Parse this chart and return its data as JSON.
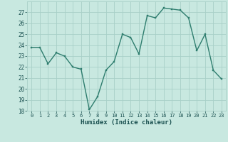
{
  "x": [
    0,
    1,
    2,
    3,
    4,
    5,
    6,
    7,
    8,
    9,
    10,
    11,
    12,
    13,
    14,
    15,
    16,
    17,
    18,
    19,
    20,
    21,
    22,
    23
  ],
  "y": [
    23.8,
    23.8,
    22.3,
    23.3,
    23.0,
    22.0,
    21.8,
    18.1,
    19.3,
    21.7,
    22.5,
    25.0,
    24.7,
    23.2,
    26.7,
    26.5,
    27.4,
    27.3,
    27.2,
    26.5,
    23.5,
    25.0,
    21.7,
    20.9
  ],
  "xlabel": "Humidex (Indice chaleur)",
  "ylim": [
    18,
    28
  ],
  "yticks": [
    18,
    19,
    20,
    21,
    22,
    23,
    24,
    25,
    26,
    27
  ],
  "xticks": [
    0,
    1,
    2,
    3,
    4,
    5,
    6,
    7,
    8,
    9,
    10,
    11,
    12,
    13,
    14,
    15,
    16,
    17,
    18,
    19,
    20,
    21,
    22,
    23
  ],
  "line_color": "#2e7d6e",
  "marker_color": "#2e7d6e",
  "bg_color": "#c8e8e0",
  "grid_color": "#a8d0c8",
  "font_color": "#1a5050"
}
